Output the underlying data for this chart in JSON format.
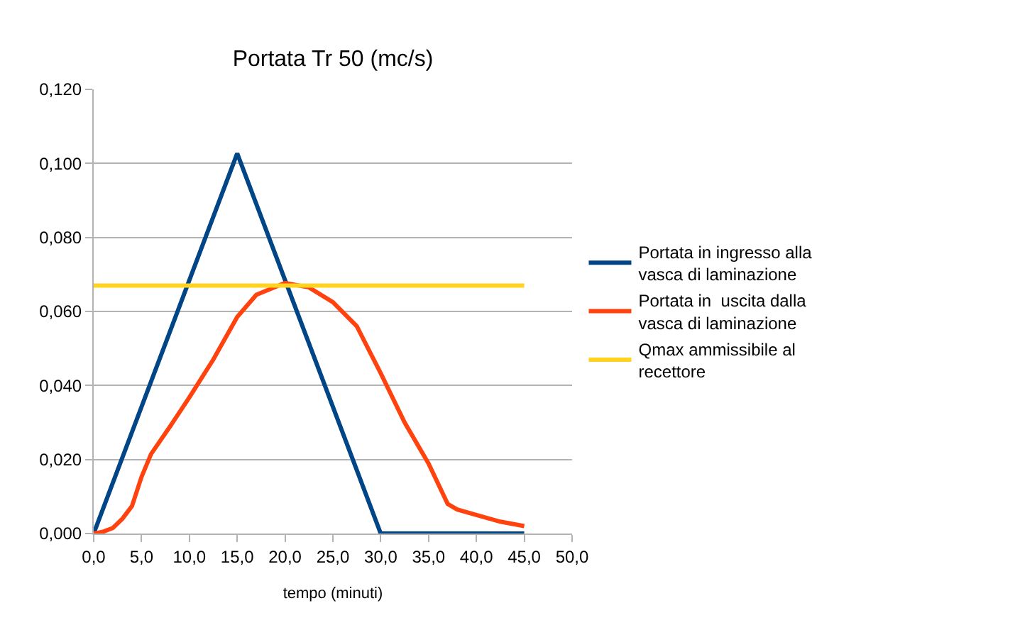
{
  "chart_data": {
    "type": "line",
    "title": "Portata Tr 50 (mc/s)",
    "xlabel": "tempo (minuti)",
    "xlim": [
      0,
      50
    ],
    "ylim": [
      0,
      0.12
    ],
    "xticks": [
      {
        "value": 0,
        "label": "0,0"
      },
      {
        "value": 5,
        "label": "5,0"
      },
      {
        "value": 10,
        "label": "10,0"
      },
      {
        "value": 15,
        "label": "15,0"
      },
      {
        "value": 20,
        "label": "20,0"
      },
      {
        "value": 25,
        "label": "25,0"
      },
      {
        "value": 30,
        "label": "30,0"
      },
      {
        "value": 35,
        "label": "35,0"
      },
      {
        "value": 40,
        "label": "40,0"
      },
      {
        "value": 45,
        "label": "45,0"
      },
      {
        "value": 50,
        "label": "50,0"
      }
    ],
    "yticks": [
      {
        "value": 0,
        "label": "0,000"
      },
      {
        "value": 0.02,
        "label": "0,020"
      },
      {
        "value": 0.04,
        "label": "0,040"
      },
      {
        "value": 0.06,
        "label": "0,060"
      },
      {
        "value": 0.08,
        "label": "0,080"
      },
      {
        "value": 0.1,
        "label": "0,100"
      },
      {
        "value": 0.12,
        "label": "0,120"
      }
    ],
    "grid": "y",
    "legend": "right",
    "marker": "none",
    "line_style": "solid",
    "series": [
      {
        "name": "Portata in ingresso alla vasca di laminazione",
        "color": "#004586",
        "x": [
          0,
          15,
          30,
          45
        ],
        "values": [
          0,
          0.1027,
          0,
          0
        ]
      },
      {
        "name": "Portata in  uscita dalla vasca di laminazione",
        "color": "#ff420e",
        "x": [
          0,
          1,
          2,
          3,
          4,
          5,
          6,
          8,
          10,
          12.5,
          15,
          17,
          20,
          22.5,
          25,
          27.5,
          30,
          32.5,
          35,
          37,
          38,
          40,
          42.5,
          45
        ],
        "values": [
          0,
          0.0005,
          0.0015,
          0.004,
          0.0074,
          0.0153,
          0.0215,
          0.029,
          0.0368,
          0.047,
          0.0585,
          0.0645,
          0.0677,
          0.0665,
          0.0625,
          0.056,
          0.0433,
          0.03,
          0.0189,
          0.008,
          0.0065,
          0.005,
          0.0032,
          0.002
        ]
      },
      {
        "name": "Qmax ammissibile al recettore",
        "color": "#ffd320",
        "x": [
          0,
          45
        ],
        "values": [
          0.067,
          0.067
        ]
      }
    ]
  }
}
